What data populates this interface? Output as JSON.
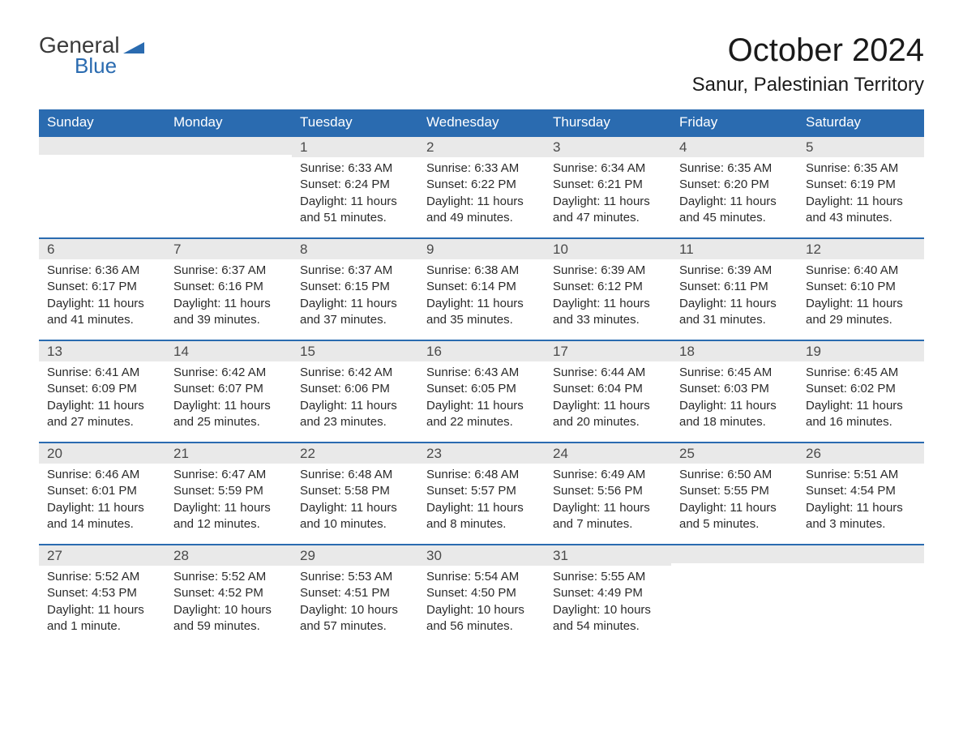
{
  "brand": {
    "text_general": "General",
    "text_blue": "Blue"
  },
  "title": {
    "month_year": "October 2024",
    "location": "Sanur, Palestinian Territory"
  },
  "dow": [
    "Sunday",
    "Monday",
    "Tuesday",
    "Wednesday",
    "Thursday",
    "Friday",
    "Saturday"
  ],
  "colors": {
    "header_bg": "#2a6bb0",
    "header_text": "#ffffff",
    "daynum_bg": "#e9e9e9",
    "daynum_border": "#2a6bb0",
    "body_text": "#2b2b2b",
    "title_text": "#1a1a1a",
    "page_bg": "#ffffff"
  },
  "fonts": {
    "month_size_pt": 30,
    "location_size_pt": 18,
    "dow_size_pt": 13,
    "cell_size_pt": 11
  },
  "weeks": [
    [
      {
        "day": "",
        "sunrise": "",
        "sunset": "",
        "daylight1": "",
        "daylight2": ""
      },
      {
        "day": "",
        "sunrise": "",
        "sunset": "",
        "daylight1": "",
        "daylight2": ""
      },
      {
        "day": "1",
        "sunrise": "Sunrise: 6:33 AM",
        "sunset": "Sunset: 6:24 PM",
        "daylight1": "Daylight: 11 hours",
        "daylight2": "and 51 minutes."
      },
      {
        "day": "2",
        "sunrise": "Sunrise: 6:33 AM",
        "sunset": "Sunset: 6:22 PM",
        "daylight1": "Daylight: 11 hours",
        "daylight2": "and 49 minutes."
      },
      {
        "day": "3",
        "sunrise": "Sunrise: 6:34 AM",
        "sunset": "Sunset: 6:21 PM",
        "daylight1": "Daylight: 11 hours",
        "daylight2": "and 47 minutes."
      },
      {
        "day": "4",
        "sunrise": "Sunrise: 6:35 AM",
        "sunset": "Sunset: 6:20 PM",
        "daylight1": "Daylight: 11 hours",
        "daylight2": "and 45 minutes."
      },
      {
        "day": "5",
        "sunrise": "Sunrise: 6:35 AM",
        "sunset": "Sunset: 6:19 PM",
        "daylight1": "Daylight: 11 hours",
        "daylight2": "and 43 minutes."
      }
    ],
    [
      {
        "day": "6",
        "sunrise": "Sunrise: 6:36 AM",
        "sunset": "Sunset: 6:17 PM",
        "daylight1": "Daylight: 11 hours",
        "daylight2": "and 41 minutes."
      },
      {
        "day": "7",
        "sunrise": "Sunrise: 6:37 AM",
        "sunset": "Sunset: 6:16 PM",
        "daylight1": "Daylight: 11 hours",
        "daylight2": "and 39 minutes."
      },
      {
        "day": "8",
        "sunrise": "Sunrise: 6:37 AM",
        "sunset": "Sunset: 6:15 PM",
        "daylight1": "Daylight: 11 hours",
        "daylight2": "and 37 minutes."
      },
      {
        "day": "9",
        "sunrise": "Sunrise: 6:38 AM",
        "sunset": "Sunset: 6:14 PM",
        "daylight1": "Daylight: 11 hours",
        "daylight2": "and 35 minutes."
      },
      {
        "day": "10",
        "sunrise": "Sunrise: 6:39 AM",
        "sunset": "Sunset: 6:12 PM",
        "daylight1": "Daylight: 11 hours",
        "daylight2": "and 33 minutes."
      },
      {
        "day": "11",
        "sunrise": "Sunrise: 6:39 AM",
        "sunset": "Sunset: 6:11 PM",
        "daylight1": "Daylight: 11 hours",
        "daylight2": "and 31 minutes."
      },
      {
        "day": "12",
        "sunrise": "Sunrise: 6:40 AM",
        "sunset": "Sunset: 6:10 PM",
        "daylight1": "Daylight: 11 hours",
        "daylight2": "and 29 minutes."
      }
    ],
    [
      {
        "day": "13",
        "sunrise": "Sunrise: 6:41 AM",
        "sunset": "Sunset: 6:09 PM",
        "daylight1": "Daylight: 11 hours",
        "daylight2": "and 27 minutes."
      },
      {
        "day": "14",
        "sunrise": "Sunrise: 6:42 AM",
        "sunset": "Sunset: 6:07 PM",
        "daylight1": "Daylight: 11 hours",
        "daylight2": "and 25 minutes."
      },
      {
        "day": "15",
        "sunrise": "Sunrise: 6:42 AM",
        "sunset": "Sunset: 6:06 PM",
        "daylight1": "Daylight: 11 hours",
        "daylight2": "and 23 minutes."
      },
      {
        "day": "16",
        "sunrise": "Sunrise: 6:43 AM",
        "sunset": "Sunset: 6:05 PM",
        "daylight1": "Daylight: 11 hours",
        "daylight2": "and 22 minutes."
      },
      {
        "day": "17",
        "sunrise": "Sunrise: 6:44 AM",
        "sunset": "Sunset: 6:04 PM",
        "daylight1": "Daylight: 11 hours",
        "daylight2": "and 20 minutes."
      },
      {
        "day": "18",
        "sunrise": "Sunrise: 6:45 AM",
        "sunset": "Sunset: 6:03 PM",
        "daylight1": "Daylight: 11 hours",
        "daylight2": "and 18 minutes."
      },
      {
        "day": "19",
        "sunrise": "Sunrise: 6:45 AM",
        "sunset": "Sunset: 6:02 PM",
        "daylight1": "Daylight: 11 hours",
        "daylight2": "and 16 minutes."
      }
    ],
    [
      {
        "day": "20",
        "sunrise": "Sunrise: 6:46 AM",
        "sunset": "Sunset: 6:01 PM",
        "daylight1": "Daylight: 11 hours",
        "daylight2": "and 14 minutes."
      },
      {
        "day": "21",
        "sunrise": "Sunrise: 6:47 AM",
        "sunset": "Sunset: 5:59 PM",
        "daylight1": "Daylight: 11 hours",
        "daylight2": "and 12 minutes."
      },
      {
        "day": "22",
        "sunrise": "Sunrise: 6:48 AM",
        "sunset": "Sunset: 5:58 PM",
        "daylight1": "Daylight: 11 hours",
        "daylight2": "and 10 minutes."
      },
      {
        "day": "23",
        "sunrise": "Sunrise: 6:48 AM",
        "sunset": "Sunset: 5:57 PM",
        "daylight1": "Daylight: 11 hours",
        "daylight2": "and 8 minutes."
      },
      {
        "day": "24",
        "sunrise": "Sunrise: 6:49 AM",
        "sunset": "Sunset: 5:56 PM",
        "daylight1": "Daylight: 11 hours",
        "daylight2": "and 7 minutes."
      },
      {
        "day": "25",
        "sunrise": "Sunrise: 6:50 AM",
        "sunset": "Sunset: 5:55 PM",
        "daylight1": "Daylight: 11 hours",
        "daylight2": "and 5 minutes."
      },
      {
        "day": "26",
        "sunrise": "Sunrise: 5:51 AM",
        "sunset": "Sunset: 4:54 PM",
        "daylight1": "Daylight: 11 hours",
        "daylight2": "and 3 minutes."
      }
    ],
    [
      {
        "day": "27",
        "sunrise": "Sunrise: 5:52 AM",
        "sunset": "Sunset: 4:53 PM",
        "daylight1": "Daylight: 11 hours",
        "daylight2": "and 1 minute."
      },
      {
        "day": "28",
        "sunrise": "Sunrise: 5:52 AM",
        "sunset": "Sunset: 4:52 PM",
        "daylight1": "Daylight: 10 hours",
        "daylight2": "and 59 minutes."
      },
      {
        "day": "29",
        "sunrise": "Sunrise: 5:53 AM",
        "sunset": "Sunset: 4:51 PM",
        "daylight1": "Daylight: 10 hours",
        "daylight2": "and 57 minutes."
      },
      {
        "day": "30",
        "sunrise": "Sunrise: 5:54 AM",
        "sunset": "Sunset: 4:50 PM",
        "daylight1": "Daylight: 10 hours",
        "daylight2": "and 56 minutes."
      },
      {
        "day": "31",
        "sunrise": "Sunrise: 5:55 AM",
        "sunset": "Sunset: 4:49 PM",
        "daylight1": "Daylight: 10 hours",
        "daylight2": "and 54 minutes."
      },
      {
        "day": "",
        "sunrise": "",
        "sunset": "",
        "daylight1": "",
        "daylight2": ""
      },
      {
        "day": "",
        "sunrise": "",
        "sunset": "",
        "daylight1": "",
        "daylight2": ""
      }
    ]
  ]
}
